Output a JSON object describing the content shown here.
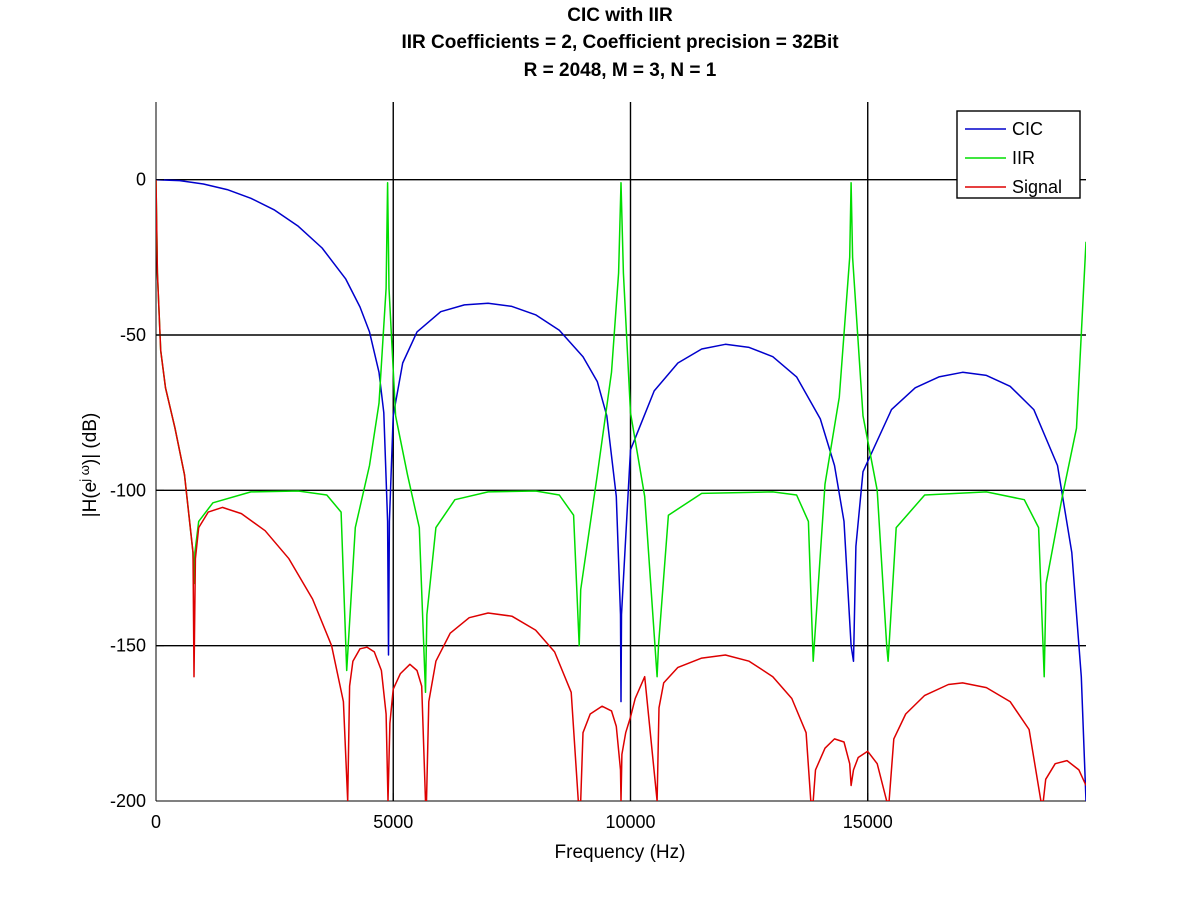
{
  "chart_data": {
    "type": "line",
    "title_lines": [
      "CIC with IIR",
      "IIR Coefficients = 2, Coefficient precision = 32Bit",
      "R = 2048, M = 3, N = 1"
    ],
    "xlabel": "Frequency (Hz)",
    "ylabel": "|H(e^{jω})| (dB)",
    "ylabel_parts": {
      "pre": "|H(e",
      "sup": "j ω",
      "post": ")| (dB)"
    },
    "xlim": [
      0,
      19600
    ],
    "ylim": [
      -200,
      25
    ],
    "xticks": [
      0,
      5000,
      10000,
      15000
    ],
    "xtick_labels": [
      "0",
      "5000",
      "10000",
      "15000"
    ],
    "yticks": [
      0,
      -50,
      -100,
      -150,
      -200
    ],
    "ytick_labels": [
      "0",
      "-50",
      "-100",
      "-150",
      "-200"
    ],
    "grid": true,
    "legend_position": "top-right",
    "series": [
      {
        "name": "CIC",
        "color": "#0000cc",
        "x": [
          0,
          500,
          1000,
          1500,
          2000,
          2500,
          3000,
          3500,
          4000,
          4300,
          4500,
          4700,
          4800,
          4880,
          4900,
          4920,
          5000,
          5200,
          5500,
          6000,
          6500,
          7000,
          7500,
          8000,
          8500,
          9000,
          9300,
          9500,
          9700,
          9790,
          9800,
          9810,
          10000,
          10500,
          11000,
          11500,
          12000,
          12500,
          13000,
          13500,
          14000,
          14300,
          14500,
          14650,
          14700,
          14750,
          14900,
          15500,
          16000,
          16500,
          17000,
          17500,
          18000,
          18500,
          19000,
          19300,
          19500,
          19600
        ],
        "y": [
          0,
          -0.3,
          -1.4,
          -3.2,
          -6.0,
          -9.8,
          -15.0,
          -22.0,
          -32.0,
          -41.0,
          -49.0,
          -62.0,
          -75.0,
          -110.0,
          -153.0,
          -110.0,
          -76.0,
          -59.0,
          -49.0,
          -42.5,
          -40.3,
          -39.8,
          -40.8,
          -43.5,
          -48.5,
          -57.0,
          -65.0,
          -76.0,
          -102.0,
          -140.0,
          -168.0,
          -140.0,
          -87.0,
          -68.0,
          -59.0,
          -54.5,
          -53.0,
          -54.0,
          -57.0,
          -63.5,
          -77.0,
          -92.0,
          -110.0,
          -150.0,
          -155.0,
          -118.0,
          -94.0,
          -74.0,
          -67.0,
          -63.5,
          -62.0,
          -63.0,
          -66.5,
          -74.0,
          -92.0,
          -120.0,
          -160.0,
          -200.0
        ]
      },
      {
        "name": "IIR",
        "color": "#00dd00",
        "x": [
          0,
          30,
          100,
          200,
          400,
          600,
          780,
          800,
          820,
          900,
          1200,
          2000,
          3000,
          3600,
          3900,
          4020,
          4050,
          4200,
          4500,
          4700,
          4850,
          4880,
          4910,
          5050,
          5300,
          5550,
          5680,
          5710,
          5900,
          6300,
          7000,
          8000,
          8500,
          8800,
          8920,
          8950,
          9300,
          9600,
          9750,
          9800,
          9850,
          10000,
          10300,
          10560,
          10590,
          10800,
          11500,
          13000,
          13500,
          13750,
          13850,
          14100,
          14400,
          14620,
          14650,
          14680,
          14900,
          15200,
          15400,
          15430,
          15600,
          16200,
          17500,
          18300,
          18600,
          18720,
          18760,
          19100,
          19400,
          19600
        ],
        "y": [
          0,
          -30,
          -55,
          -67,
          -80,
          -95,
          -120,
          -130,
          -120,
          -110,
          -104,
          -100.5,
          -100.2,
          -101.5,
          -107,
          -158,
          -150,
          -112,
          -92,
          -72,
          -35,
          -1,
          -35,
          -76,
          -95,
          -112,
          -165,
          -140,
          -112,
          -103,
          -100.5,
          -100.2,
          -101.5,
          -108,
          -150,
          -132,
          -95,
          -62,
          -30,
          -1,
          -30,
          -75,
          -102,
          -160,
          -150,
          -108,
          -101,
          -100.5,
          -101.5,
          -110,
          -155,
          -98,
          -70,
          -25,
          -1,
          -25,
          -76,
          -100,
          -150,
          -155,
          -112,
          -101.5,
          -100.5,
          -103,
          -112,
          -160,
          -130,
          -102,
          -80,
          -20
        ]
      },
      {
        "name": "Signal",
        "color": "#dd0000",
        "x": [
          0,
          30,
          100,
          200,
          400,
          600,
          780,
          800,
          830,
          900,
          1100,
          1400,
          1800,
          2300,
          2800,
          3300,
          3700,
          3950,
          4040,
          4080,
          4150,
          4300,
          4450,
          4600,
          4750,
          4850,
          4890,
          4930,
          5000,
          5150,
          5350,
          5500,
          5600,
          5680,
          5700,
          5750,
          5900,
          6200,
          6600,
          7000,
          7500,
          8000,
          8400,
          8750,
          8900,
          8950,
          9000,
          9150,
          9400,
          9600,
          9700,
          9790,
          9800,
          9820,
          9900,
          10000,
          10100,
          10300,
          10560,
          10600,
          10700,
          11000,
          11500,
          12000,
          12500,
          13000,
          13400,
          13700,
          13800,
          13850,
          13900,
          14100,
          14300,
          14500,
          14620,
          14650,
          14700,
          14800,
          15000,
          15200,
          15400,
          15450,
          15550,
          15800,
          16200,
          16700,
          17000,
          17500,
          18000,
          18400,
          18650,
          18700,
          18750,
          18950,
          19200,
          19450,
          19600
        ],
        "y": [
          0,
          -30,
          -55,
          -67,
          -80,
          -95,
          -120,
          -160,
          -122,
          -112,
          -107,
          -105.5,
          -107.5,
          -113,
          -122,
          -135,
          -150,
          -168,
          -200,
          -163,
          -155,
          -151,
          -150.5,
          -152,
          -158,
          -172,
          -200,
          -175,
          -164,
          -159,
          -156,
          -158,
          -163,
          -200,
          -200,
          -168,
          -155,
          -146,
          -141,
          -139.5,
          -140.5,
          -145,
          -152,
          -165,
          -200,
          -200,
          -178,
          -172,
          -169.5,
          -171,
          -176,
          -190,
          -200,
          -185,
          -178,
          -173,
          -167,
          -160,
          -200,
          -170,
          -162,
          -157,
          -154,
          -153,
          -155,
          -160,
          -167,
          -178,
          -200,
          -200,
          -190,
          -183,
          -180,
          -181,
          -188,
          -195,
          -190,
          -186,
          -184,
          -188,
          -200,
          -200,
          -180,
          -172,
          -166,
          -162.5,
          -162,
          -163.5,
          -168,
          -177,
          -200,
          -200,
          -193,
          -188,
          -187,
          -190,
          -195
        ]
      }
    ]
  }
}
